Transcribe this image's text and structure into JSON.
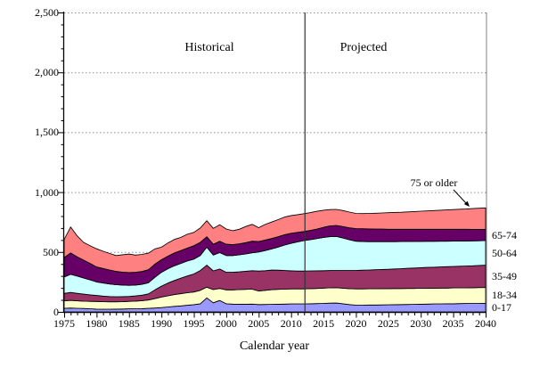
{
  "chart_data": {
    "type": "area",
    "stacked": true,
    "title": "",
    "xlabel": "Calendar year",
    "ylabel": "",
    "ylim": [
      0,
      2500
    ],
    "y_ticks": [
      0,
      500,
      1000,
      1500,
      2000,
      2500
    ],
    "y_tick_labels": [
      "0",
      "500",
      "1,000",
      "1,500",
      "2,000",
      "2,500"
    ],
    "y_minor_unit": 100,
    "x_range": [
      1975,
      2040
    ],
    "x_major_unit": 5,
    "x_minor_unit": 1,
    "x_tick_labels": [
      "1975",
      "1980",
      "1985",
      "1990",
      "1995",
      "2000",
      "2005",
      "2010",
      "2015",
      "2020",
      "2025",
      "2030",
      "2035",
      "2040"
    ],
    "grid": "horizontal-dotted",
    "legend_position": "right-of-plot-band-labels",
    "divider_year": 2012,
    "years": [
      1975,
      1976,
      1977,
      1978,
      1979,
      1980,
      1981,
      1982,
      1983,
      1984,
      1985,
      1986,
      1987,
      1988,
      1989,
      1990,
      1991,
      1992,
      1993,
      1994,
      1995,
      1996,
      1997,
      1998,
      1999,
      2000,
      2001,
      2002,
      2003,
      2004,
      2005,
      2006,
      2007,
      2008,
      2009,
      2010,
      2011,
      2012,
      2013,
      2014,
      2015,
      2016,
      2017,
      2018,
      2019,
      2020,
      2021,
      2022,
      2023,
      2024,
      2025,
      2026,
      2027,
      2028,
      2029,
      2030,
      2031,
      2032,
      2033,
      2034,
      2035,
      2036,
      2037,
      2038,
      2039,
      2040
    ],
    "series": [
      {
        "name": "0-17",
        "color": "#9999FF",
        "values": [
          30,
          32,
          30,
          28,
          26,
          23,
          22,
          22,
          23,
          24,
          25,
          26,
          27,
          29,
          32,
          36,
          41,
          46,
          50,
          55,
          60,
          68,
          117,
          76,
          95,
          68,
          65,
          64,
          64,
          65,
          61,
          62,
          63,
          64,
          65,
          66,
          66,
          67,
          68,
          69,
          71,
          73,
          74,
          68,
          61,
          56,
          56,
          57,
          57,
          58,
          59,
          60,
          61,
          62,
          63,
          64,
          65,
          66,
          67,
          68,
          68,
          69,
          70,
          71,
          71,
          72
        ]
      },
      {
        "name": "18-34",
        "color": "#FFFFCC",
        "values": [
          62,
          64,
          62,
          61,
          62,
          64,
          63,
          62,
          61,
          61,
          63,
          64,
          67,
          70,
          79,
          88,
          93,
          98,
          102,
          105,
          106,
          112,
          89,
          110,
          101,
          116,
          119,
          122,
          124,
          125,
          113,
          118,
          122,
          124,
          125,
          126,
          126,
          125,
          126,
          127,
          128,
          128,
          128,
          130,
          133,
          136,
          136,
          136,
          136,
          136,
          135,
          135,
          134,
          134,
          133,
          133,
          133,
          132,
          132,
          131,
          132,
          132,
          131,
          131,
          132,
          132
        ]
      },
      {
        "name": "35-49",
        "color": "#993366",
        "values": [
          62,
          66,
          63,
          59,
          54,
          50,
          47,
          44,
          42,
          42,
          41,
          43,
          45,
          51,
          73,
          91,
          106,
          118,
          130,
          140,
          150,
          165,
          184,
          156,
          162,
          146,
          146,
          148,
          151,
          154,
          167,
          164,
          164,
          160,
          155,
          151,
          149,
          149,
          148,
          147,
          145,
          144,
          144,
          147,
          151,
          154,
          156,
          157,
          159,
          160,
          162,
          164,
          166,
          168,
          170,
          172,
          173,
          175,
          176,
          178,
          179,
          180,
          182,
          183,
          185,
          186
        ]
      },
      {
        "name": "50-64",
        "color": "#CCFFFF",
        "values": [
          137,
          151,
          143,
          135,
          125,
          113,
          109,
          105,
          101,
          97,
          93,
          91,
          91,
          93,
          105,
          115,
          120,
          123,
          123,
          125,
          124,
          125,
          150,
          133,
          137,
          140,
          140,
          142,
          145,
          149,
          159,
          168,
          177,
          193,
          213,
          229,
          244,
          254,
          261,
          269,
          277,
          283,
          284,
          272,
          257,
          244,
          239,
          236,
          234,
          232,
          230,
          227,
          226,
          223,
          222,
          219,
          218,
          216,
          215,
          213,
          212,
          211,
          209,
          208,
          206,
          205
        ]
      },
      {
        "name": "65-74",
        "color": "#660066",
        "values": [
          162,
          179,
          162,
          149,
          138,
          125,
          121,
          117,
          111,
          108,
          106,
          106,
          107,
          109,
          110,
          105,
          105,
          107,
          107,
          108,
          112,
          110,
          87,
          90,
          95,
          95,
          92,
          92,
          94,
          97,
          88,
          88,
          86,
          86,
          86,
          84,
          79,
          76,
          77,
          80,
          85,
          90,
          92,
          95,
          100,
          106,
          107,
          107,
          106,
          105,
          104,
          104,
          103,
          103,
          102,
          102,
          101,
          101,
          100,
          100,
          99,
          98,
          98,
          96,
          95,
          94
        ]
      },
      {
        "name": "75 or older",
        "color": "#FF8080",
        "values": [
          151,
          217,
          175,
          148,
          147,
          152,
          144,
          138,
          132,
          145,
          155,
          144,
          143,
          138,
          127,
          105,
          110,
          113,
          110,
          115,
          112,
          120,
          134,
          132,
          138,
          127,
          116,
          122,
          135,
          141,
          115,
          130,
          138,
          143,
          148,
          148,
          148,
          149,
          149,
          148,
          143,
          136,
          134,
          134,
          131,
          126,
          127,
          129,
          132,
          135,
          138,
          140,
          142,
          145,
          148,
          151,
          153,
          156,
          159,
          161,
          164,
          167,
          169,
          173,
          176,
          179
        ]
      }
    ],
    "side_labels": [
      "65-74",
      "50-64",
      "35-49",
      "18-34",
      "0-17"
    ],
    "colors": {
      "grid": "#909090",
      "axis": "#000000",
      "divider": "#333333",
      "plot_right_border": "#808080",
      "area_outline": "#000000"
    }
  },
  "titles": {
    "historical": "Historical",
    "projected": "Projected"
  },
  "x_axis": {
    "title": "Calendar year"
  },
  "callout": {
    "text": "75 or older"
  }
}
